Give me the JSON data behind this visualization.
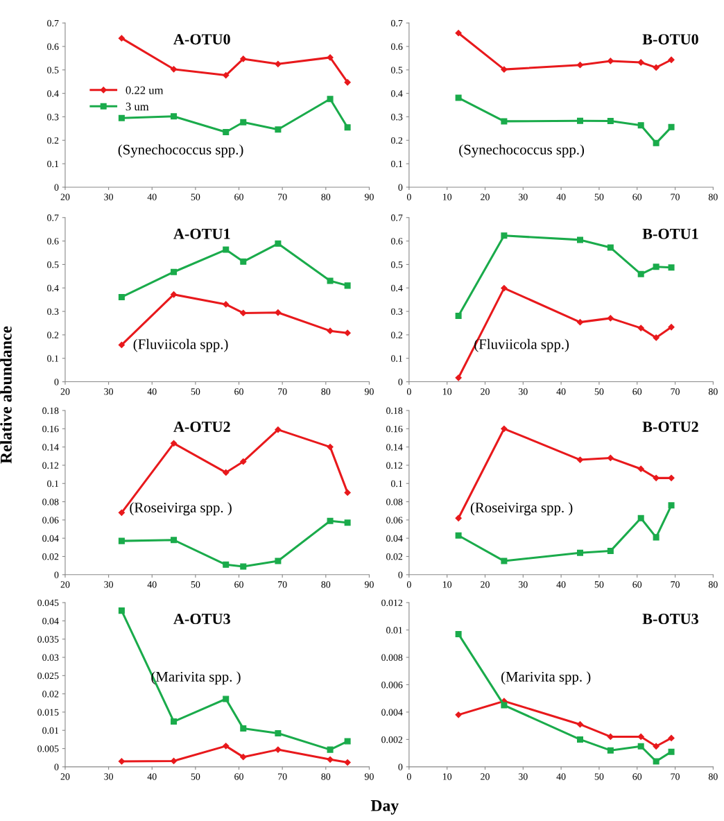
{
  "chart_data": [
    {
      "type": "line",
      "title": "A-OTU0",
      "annotations": [
        "(Synechococcus spp.)"
      ],
      "legend": "top left",
      "series": [
        {
          "name": "0.22 um",
          "color": "#e8191c",
          "marker": "diamond",
          "x": [
            33,
            45,
            57,
            61,
            69,
            81,
            85
          ],
          "values": [
            0.635,
            0.503,
            0.477,
            0.547,
            0.525,
            0.553,
            0.447
          ]
        },
        {
          "name": "3 um",
          "color": "#1aab4b",
          "marker": "square",
          "x": [
            33,
            45,
            57,
            61,
            69,
            81,
            85
          ],
          "values": [
            0.295,
            0.302,
            0.235,
            0.277,
            0.246,
            0.376,
            0.255
          ]
        }
      ],
      "xlim": [
        20,
        90
      ],
      "xticks": [
        20,
        30,
        40,
        50,
        60,
        70,
        80,
        90
      ],
      "ylim": [
        0,
        0.7
      ],
      "yticks": [
        0,
        0.1,
        0.2,
        0.3,
        0.4,
        0.5,
        0.6,
        0.7
      ]
    },
    {
      "type": "line",
      "title": "B-OTU0",
      "annotations": [
        "(Synechococcus spp.)"
      ],
      "series": [
        {
          "color": "#e8191c",
          "marker": "diamond",
          "x": [
            13,
            25,
            45,
            53,
            61,
            65,
            69
          ],
          "values": [
            0.657,
            0.502,
            0.521,
            0.538,
            0.532,
            0.51,
            0.543
          ]
        },
        {
          "color": "#1aab4b",
          "marker": "square",
          "x": [
            13,
            25,
            45,
            53,
            61,
            65,
            69
          ],
          "values": [
            0.381,
            0.281,
            0.283,
            0.282,
            0.264,
            0.188,
            0.256
          ]
        }
      ],
      "xlim": [
        0,
        80
      ],
      "xticks": [
        0,
        10,
        20,
        30,
        40,
        50,
        60,
        70,
        80
      ],
      "ylim": [
        0,
        0.7
      ],
      "yticks": [
        0,
        0.1,
        0.2,
        0.3,
        0.4,
        0.5,
        0.6,
        0.7
      ]
    },
    {
      "type": "line",
      "title": "A-OTU1",
      "ylabel": "Relative abundance",
      "annotations": [
        "(Fluviicola spp.)"
      ],
      "series": [
        {
          "color": "#e8191c",
          "marker": "diamond",
          "x": [
            33,
            45,
            57,
            61,
            69,
            81,
            85
          ],
          "values": [
            0.157,
            0.372,
            0.33,
            0.293,
            0.295,
            0.217,
            0.208
          ]
        },
        {
          "color": "#1aab4b",
          "marker": "square",
          "x": [
            33,
            45,
            57,
            61,
            69,
            81,
            85
          ],
          "values": [
            0.361,
            0.468,
            0.563,
            0.512,
            0.589,
            0.43,
            0.41
          ]
        }
      ],
      "xlim": [
        20,
        90
      ],
      "xticks": [
        20,
        30,
        40,
        50,
        60,
        70,
        80,
        90
      ],
      "ylim": [
        0,
        0.7
      ],
      "yticks": [
        0,
        0.1,
        0.2,
        0.3,
        0.4,
        0.5,
        0.6,
        0.7
      ]
    },
    {
      "type": "line",
      "title": "B-OTU1",
      "annotations": [
        "(Fluviicola spp.)"
      ],
      "series": [
        {
          "color": "#e8191c",
          "marker": "diamond",
          "x": [
            13,
            25,
            45,
            53,
            61,
            65,
            69
          ],
          "values": [
            0.017,
            0.399,
            0.254,
            0.271,
            0.229,
            0.188,
            0.233
          ]
        },
        {
          "color": "#1aab4b",
          "marker": "square",
          "x": [
            13,
            25,
            45,
            53,
            61,
            65,
            69
          ],
          "values": [
            0.281,
            0.623,
            0.605,
            0.572,
            0.459,
            0.49,
            0.487
          ]
        }
      ],
      "xlim": [
        0,
        80
      ],
      "xticks": [
        0,
        10,
        20,
        30,
        40,
        50,
        60,
        70,
        80
      ],
      "ylim": [
        0,
        0.7
      ],
      "yticks": [
        0,
        0.1,
        0.2,
        0.3,
        0.4,
        0.5,
        0.6,
        0.7
      ]
    },
    {
      "type": "line",
      "title": "A-OTU2",
      "annotations": [
        "(Roseivirga spp. )"
      ],
      "series": [
        {
          "color": "#e8191c",
          "marker": "diamond",
          "x": [
            33,
            45,
            57,
            61,
            69,
            81,
            85
          ],
          "values": [
            0.068,
            0.144,
            0.112,
            0.124,
            0.159,
            0.14,
            0.09
          ]
        },
        {
          "color": "#1aab4b",
          "marker": "square",
          "x": [
            33,
            45,
            57,
            61,
            69,
            81,
            85
          ],
          "values": [
            0.037,
            0.038,
            0.011,
            0.009,
            0.015,
            0.059,
            0.057
          ]
        }
      ],
      "xlim": [
        20,
        90
      ],
      "xticks": [
        20,
        30,
        40,
        50,
        60,
        70,
        80,
        90
      ],
      "ylim": [
        0,
        0.18
      ],
      "yticks": [
        0,
        0.02,
        0.04,
        0.06,
        0.08,
        0.1,
        0.12,
        0.14,
        0.16,
        0.18
      ]
    },
    {
      "type": "line",
      "title": "B-OTU2",
      "annotations": [
        "(Roseivirga spp. )"
      ],
      "series": [
        {
          "color": "#e8191c",
          "marker": "diamond",
          "x": [
            13,
            25,
            45,
            53,
            61,
            65,
            69
          ],
          "values": [
            0.062,
            0.16,
            0.126,
            0.128,
            0.116,
            0.106,
            0.106
          ]
        },
        {
          "color": "#1aab4b",
          "marker": "square",
          "x": [
            13,
            25,
            45,
            53,
            61,
            65,
            69
          ],
          "values": [
            0.043,
            0.015,
            0.024,
            0.026,
            0.062,
            0.041,
            0.076
          ]
        }
      ],
      "xlim": [
        0,
        80
      ],
      "xticks": [
        0,
        10,
        20,
        30,
        40,
        50,
        60,
        70,
        80
      ],
      "ylim": [
        0,
        0.18
      ],
      "yticks": [
        0,
        0.02,
        0.04,
        0.06,
        0.08,
        0.1,
        0.12,
        0.14,
        0.16,
        0.18
      ]
    },
    {
      "type": "line",
      "title": "A-OTU3",
      "annotations": [
        "(Marivita spp. )"
      ],
      "series": [
        {
          "color": "#e8191c",
          "marker": "diamond",
          "x": [
            33,
            45,
            57,
            61,
            69,
            81,
            85
          ],
          "values": [
            0.0015,
            0.0016,
            0.0057,
            0.0027,
            0.0047,
            0.002,
            0.0012
          ]
        },
        {
          "color": "#1aab4b",
          "marker": "square",
          "x": [
            33,
            45,
            57,
            61,
            69,
            81,
            85
          ],
          "values": [
            0.0428,
            0.0124,
            0.0186,
            0.0105,
            0.0092,
            0.0047,
            0.007
          ]
        }
      ],
      "xlim": [
        20,
        90
      ],
      "xticks": [
        20,
        30,
        40,
        50,
        60,
        70,
        80,
        90
      ],
      "ylim": [
        0,
        0.045
      ],
      "yticks": [
        0,
        0.005,
        0.01,
        0.015,
        0.02,
        0.025,
        0.03,
        0.035,
        0.04,
        0.045
      ]
    },
    {
      "type": "line",
      "title": "B-OTU3",
      "xlabel": "Day",
      "annotations": [
        "(Marivita spp. )"
      ],
      "series": [
        {
          "color": "#e8191c",
          "marker": "diamond",
          "x": [
            13,
            25,
            45,
            53,
            61,
            65,
            69
          ],
          "values": [
            0.0038,
            0.0048,
            0.0031,
            0.0022,
            0.0022,
            0.0015,
            0.0021
          ]
        },
        {
          "color": "#1aab4b",
          "marker": "square",
          "x": [
            13,
            25,
            45,
            53,
            61,
            65,
            69
          ],
          "values": [
            0.0097,
            0.0045,
            0.002,
            0.0012,
            0.0015,
            0.0004,
            0.0011
          ]
        }
      ],
      "xlim": [
        0,
        80
      ],
      "xticks": [
        0,
        10,
        20,
        30,
        40,
        50,
        60,
        70,
        80
      ],
      "ylim": [
        0,
        0.012
      ],
      "yticks": [
        0,
        0.002,
        0.004,
        0.006,
        0.008,
        0.01,
        0.012
      ]
    }
  ]
}
